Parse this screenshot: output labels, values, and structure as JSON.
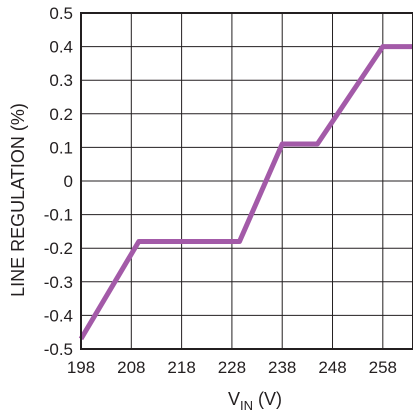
{
  "chart_data": {
    "type": "line",
    "title": "",
    "xlabel": {
      "main": "V",
      "subscript": "IN",
      "unit": " (V)"
    },
    "ylabel": "LINE REGULATION (%)",
    "xlim": [
      198,
      264
    ],
    "ylim": [
      -0.5,
      0.5
    ],
    "x_ticks": [
      198,
      208,
      218,
      228,
      238,
      248,
      258
    ],
    "y_ticks": [
      0.5,
      0.4,
      0.3,
      0.2,
      0.1,
      0,
      -0.1,
      -0.2,
      -0.3,
      -0.4,
      -0.5
    ],
    "x_tick_labels": [
      "198",
      "208",
      "218",
      "228",
      "238",
      "248",
      "258"
    ],
    "y_tick_labels": [
      "0.5",
      "0.4",
      "0.3",
      "0.2",
      "0.1",
      "0",
      "-0.1",
      "-0.2",
      "-0.3",
      "-0.4",
      "-0.5"
    ],
    "grid": true,
    "series": [
      {
        "color": "#a35aa8",
        "x": [
          198,
          209.5,
          229.5,
          238,
          245,
          258,
          264
        ],
        "y": [
          -0.47,
          -0.18,
          -0.18,
          0.11,
          0.11,
          0.4,
          0.4
        ]
      }
    ]
  }
}
